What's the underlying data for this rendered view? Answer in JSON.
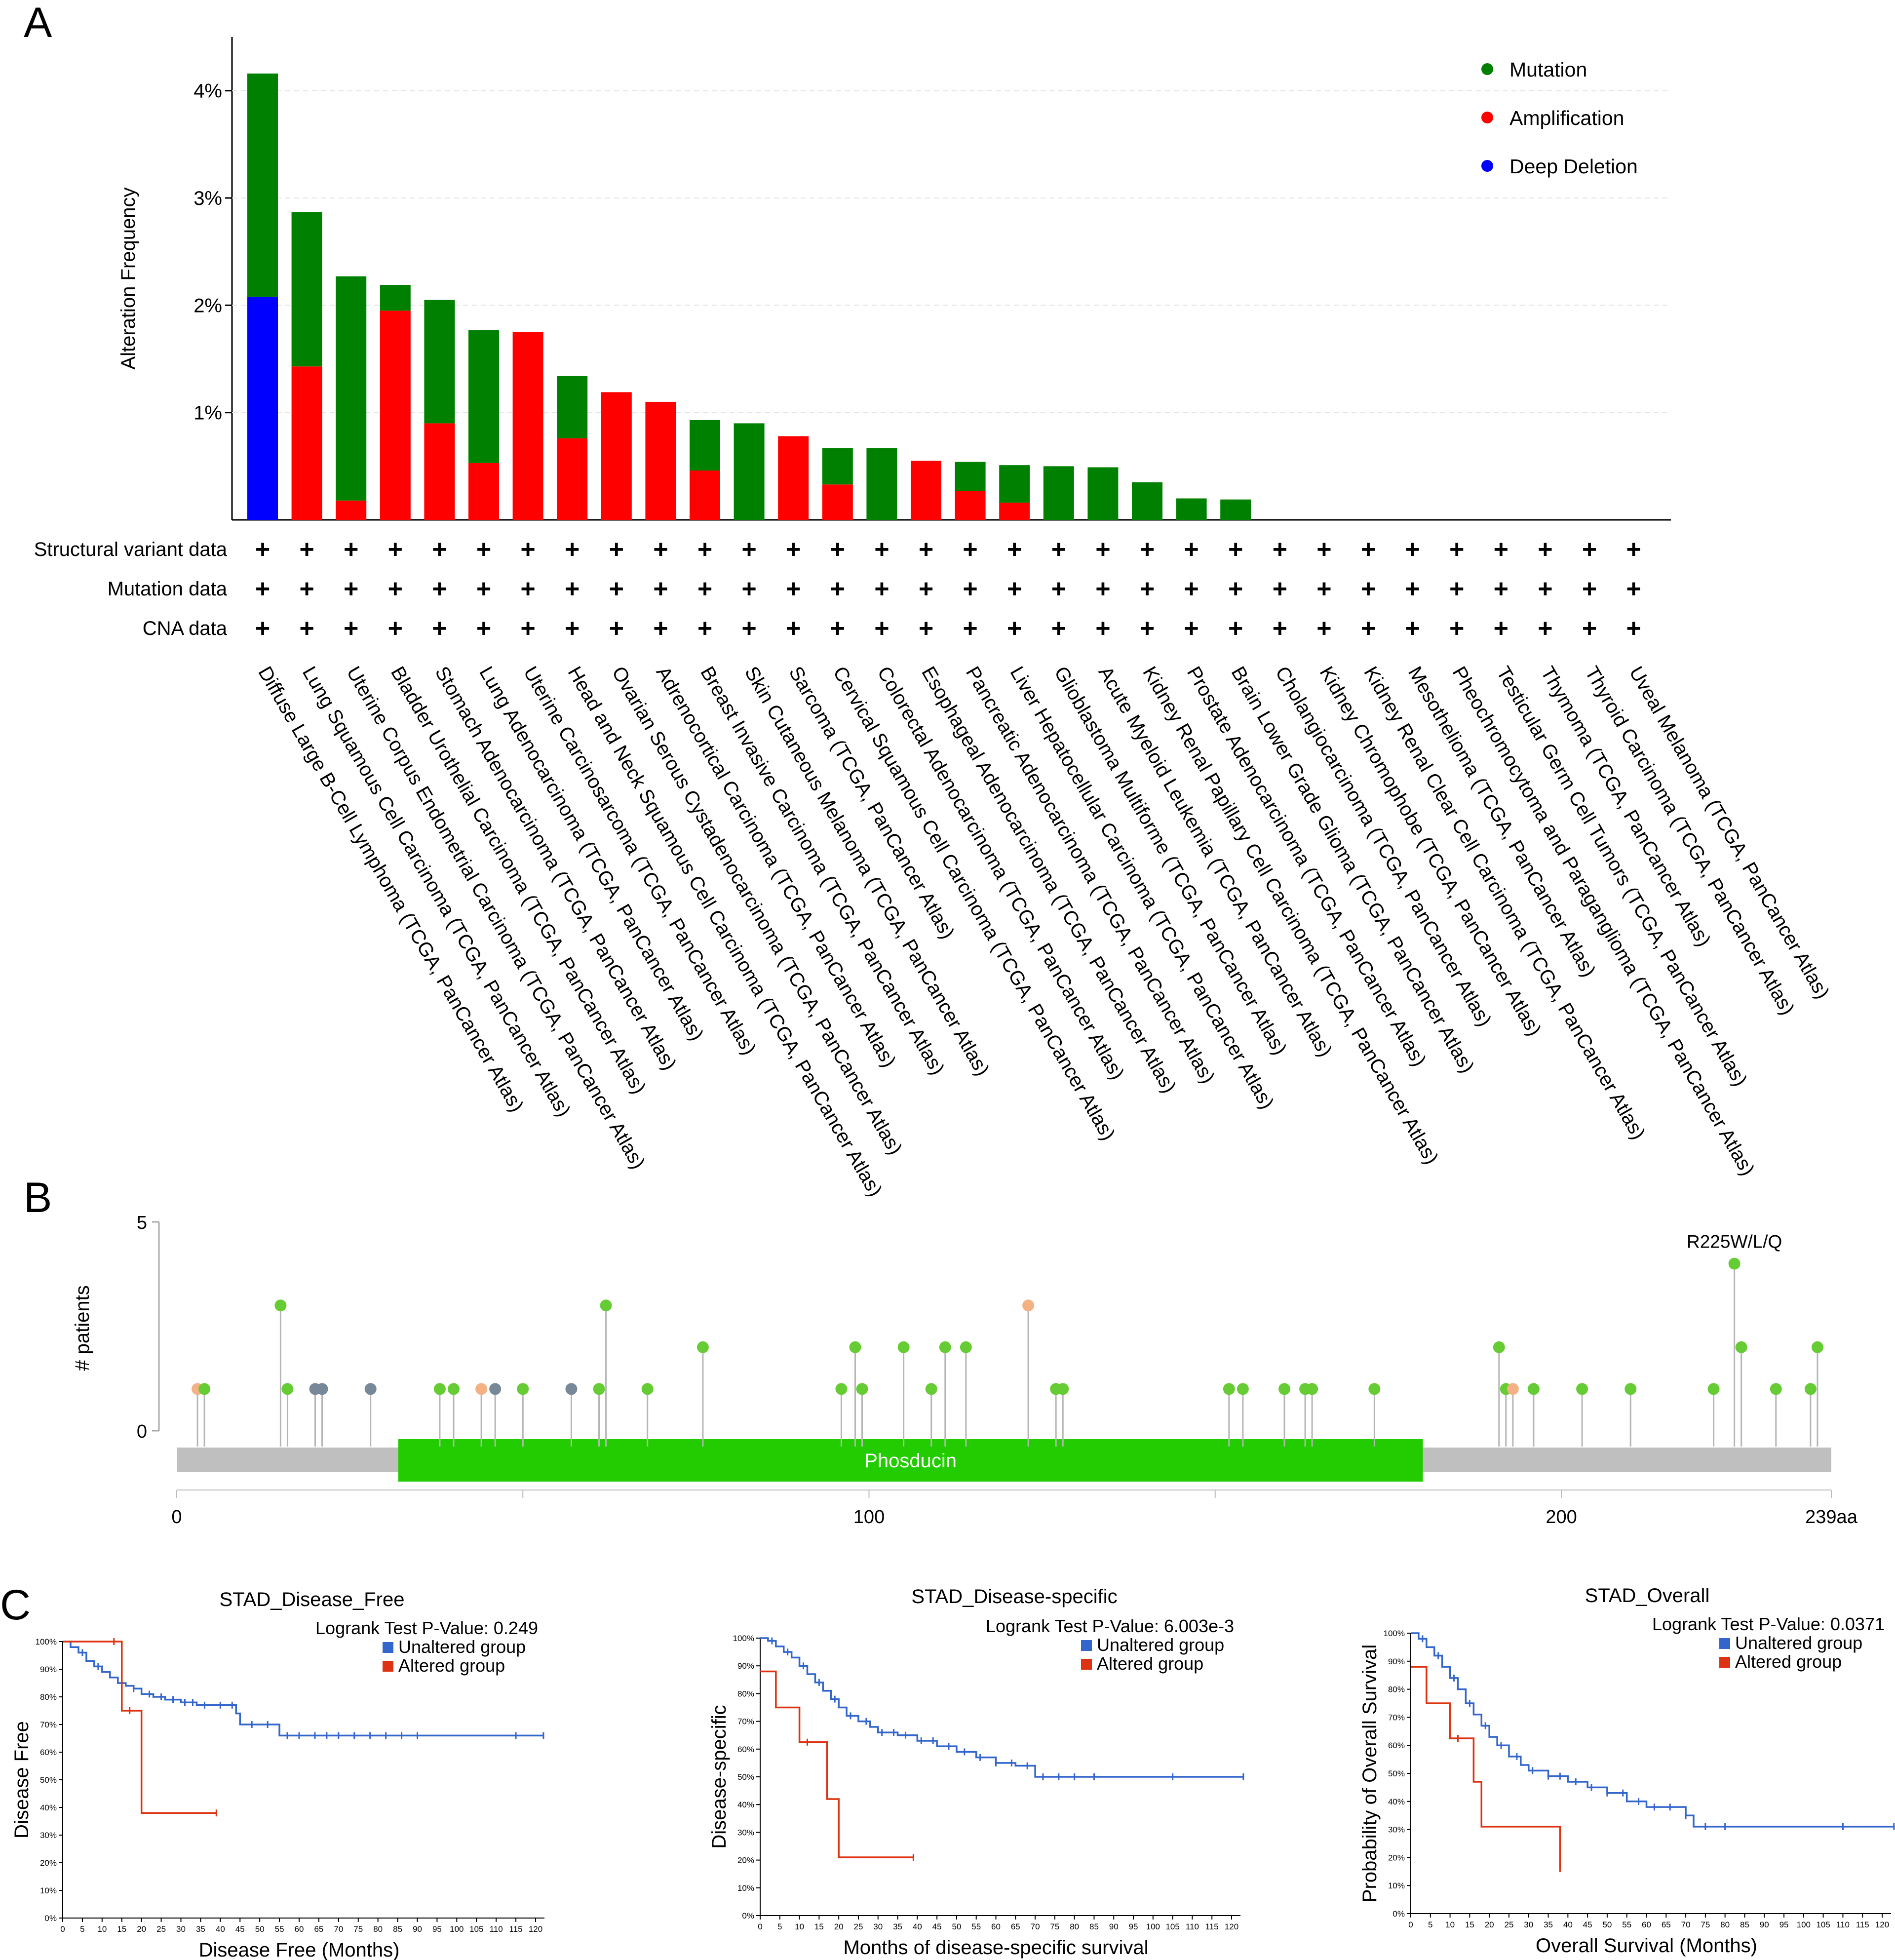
{
  "panels": {
    "a": "A",
    "b": "B",
    "c": "C"
  },
  "colors": {
    "mutation": "#008000",
    "amplification": "#ff0000",
    "deep_deletion": "#0000ff",
    "missense": "#66cc33",
    "truncating": "#778899",
    "inframe": "#f4b183",
    "domain": "#22cc00",
    "backbone": "#bfbfbf",
    "unaltered": "#3366cc",
    "altered": "#dd3311"
  },
  "chart_data": [
    {
      "id": "alteration_frequency",
      "type": "bar",
      "ylabel": "Alteration Frequency",
      "ylim": [
        0,
        4.5
      ],
      "yticks": [
        1,
        2,
        3,
        4
      ],
      "ytick_labels": [
        "1%",
        "2%",
        "3%",
        "4%"
      ],
      "legend": [
        "Mutation",
        "Amplification",
        "Deep Deletion"
      ],
      "legend_position": "top-right",
      "row_labels": [
        "Structural variant data",
        "Mutation data",
        "CNA data"
      ],
      "row_marker": "+",
      "categories": [
        "Diffuse Large B-Cell Lymphoma (TCGA, PanCancer Atlas)",
        "Lung Squamous Cell Carcinoma (TCGA, PanCancer Atlas)",
        "Uterine Corpus Endometrial Carcinoma (TCGA, PanCancer Atlas)",
        "Bladder Urothelial Carcinoma (TCGA, PanCancer Atlas)",
        "Stomach Adenocarcinoma (TCGA, PanCancer Atlas)",
        "Lung Adenocarcinoma (TCGA, PanCancer Atlas)",
        "Uterine Carcinosarcoma (TCGA, PanCancer Atlas)",
        "Head and Neck Squamous Cell Carcinoma (TCGA, PanCancer Atlas)",
        "Ovarian Serous Cystadenocarcinoma (TCGA, PanCancer Atlas)",
        "Adrenocortical Carcinoma (TCGA, PanCancer Atlas)",
        "Breast Invasive Carcinoma (TCGA, PanCancer Atlas)",
        "Skin Cutaneous Melanoma (TCGA, PanCancer Atlas)",
        "Sarcoma (TCGA, PanCancer Atlas)",
        "Cervical Squamous Cell Carcinoma (TCGA, PanCancer Atlas)",
        "Colorectal Adenocarcinoma (TCGA, PanCancer Atlas)",
        "Esophageal Adenocarcinoma (TCGA, PanCancer Atlas)",
        "Pancreatic Adenocarcinoma (TCGA, PanCancer Atlas)",
        "Liver Hepatocellular Carcinoma (TCGA, PanCancer Atlas)",
        "Glioblastoma Multiforme (TCGA, PanCancer Atlas)",
        "Acute Myeloid Leukemia (TCGA, PanCancer Atlas)",
        "Kidney Renal Papillary Cell Carcinoma (TCGA, PanCancer Atlas)",
        "Prostate Adenocarcinoma (TCGA, PanCancer Atlas)",
        "Brain Lower Grade Glioma (TCGA, PanCancer Atlas)",
        "Cholangiocarcinoma (TCGA, PanCancer Atlas)",
        "Kidney Chromophobe (TCGA, PanCancer Atlas)",
        "Kidney Renal Clear Cell Carcinoma (TCGA, PanCancer Atlas)",
        "Mesothelioma (TCGA, PanCancer Atlas)",
        "Pheochromocytoma and Paraganglioma (TCGA, PanCancer Atlas)",
        "Testicular Germ Cell Tumors (TCGA, PanCancer Atlas)",
        "Thymoma (TCGA, PanCancer Atlas)",
        "Thyroid Carcinoma (TCGA, PanCancer Atlas)",
        "Uveal Melanoma (TCGA, PanCancer Atlas)"
      ],
      "series": [
        {
          "name": "Deep Deletion",
          "values": [
            2.08,
            0,
            0,
            0,
            0,
            0,
            0,
            0,
            0,
            0,
            0,
            0,
            0,
            0,
            0,
            0,
            0,
            0,
            0,
            0,
            0,
            0,
            0,
            0,
            0,
            0,
            0,
            0,
            0,
            0,
            0,
            0
          ]
        },
        {
          "name": "Amplification",
          "values": [
            0,
            1.43,
            0.18,
            1.95,
            0.9,
            0.53,
            1.75,
            0.76,
            1.19,
            1.1,
            0.46,
            0,
            0.78,
            0.33,
            0,
            0.55,
            0.27,
            0.16,
            0,
            0,
            0,
            0,
            0,
            0,
            0,
            0,
            0,
            0,
            0,
            0,
            0,
            0
          ]
        },
        {
          "name": "Mutation",
          "values": [
            2.08,
            1.44,
            2.09,
            0.24,
            1.15,
            1.24,
            0,
            0.58,
            0,
            0,
            0.47,
            0.9,
            0,
            0.34,
            0.67,
            0,
            0.27,
            0.35,
            0.5,
            0.49,
            0.35,
            0.2,
            0.19,
            0,
            0,
            0,
            0,
            0,
            0,
            0,
            0,
            0
          ]
        }
      ]
    },
    {
      "id": "lollipop",
      "type": "scatter",
      "ylabel": "# patients",
      "ylim": [
        0,
        5
      ],
      "yticks": [
        0,
        5
      ],
      "xlim": [
        0,
        239
      ],
      "xticks": [
        0,
        100,
        200
      ],
      "xtick_labels": [
        "0",
        "100",
        "200"
      ],
      "protein_length_label": "239aa",
      "domain": {
        "name": "Phosducin",
        "start": 32,
        "end": 180
      },
      "annotation": {
        "label": "R225W/L/Q",
        "x": 225,
        "y": 4
      },
      "points": [
        {
          "x": 3,
          "y": 1,
          "type": "inframe"
        },
        {
          "x": 4,
          "y": 1,
          "type": "missense"
        },
        {
          "x": 15,
          "y": 3,
          "type": "missense"
        },
        {
          "x": 16,
          "y": 1,
          "type": "missense"
        },
        {
          "x": 20,
          "y": 1,
          "type": "truncating"
        },
        {
          "x": 21,
          "y": 1,
          "type": "truncating"
        },
        {
          "x": 28,
          "y": 1,
          "type": "truncating"
        },
        {
          "x": 38,
          "y": 1,
          "type": "missense"
        },
        {
          "x": 40,
          "y": 1,
          "type": "missense"
        },
        {
          "x": 44,
          "y": 1,
          "type": "inframe"
        },
        {
          "x": 46,
          "y": 1,
          "type": "truncating"
        },
        {
          "x": 50,
          "y": 1,
          "type": "missense"
        },
        {
          "x": 57,
          "y": 1,
          "type": "truncating"
        },
        {
          "x": 61,
          "y": 1,
          "type": "missense"
        },
        {
          "x": 62,
          "y": 3,
          "type": "missense"
        },
        {
          "x": 68,
          "y": 1,
          "type": "missense"
        },
        {
          "x": 76,
          "y": 2,
          "type": "missense"
        },
        {
          "x": 96,
          "y": 1,
          "type": "missense"
        },
        {
          "x": 98,
          "y": 2,
          "type": "missense"
        },
        {
          "x": 99,
          "y": 1,
          "type": "missense"
        },
        {
          "x": 105,
          "y": 2,
          "type": "missense"
        },
        {
          "x": 109,
          "y": 1,
          "type": "missense"
        },
        {
          "x": 111,
          "y": 2,
          "type": "missense"
        },
        {
          "x": 114,
          "y": 2,
          "type": "missense"
        },
        {
          "x": 123,
          "y": 3,
          "type": "inframe"
        },
        {
          "x": 127,
          "y": 1,
          "type": "missense"
        },
        {
          "x": 128,
          "y": 1,
          "type": "missense"
        },
        {
          "x": 152,
          "y": 1,
          "type": "missense"
        },
        {
          "x": 154,
          "y": 1,
          "type": "missense"
        },
        {
          "x": 160,
          "y": 1,
          "type": "missense"
        },
        {
          "x": 163,
          "y": 1,
          "type": "missense"
        },
        {
          "x": 164,
          "y": 1,
          "type": "missense"
        },
        {
          "x": 173,
          "y": 1,
          "type": "missense"
        },
        {
          "x": 191,
          "y": 2,
          "type": "missense"
        },
        {
          "x": 192,
          "y": 1,
          "type": "missense"
        },
        {
          "x": 193,
          "y": 1,
          "type": "inframe"
        },
        {
          "x": 196,
          "y": 1,
          "type": "missense"
        },
        {
          "x": 203,
          "y": 1,
          "type": "missense"
        },
        {
          "x": 210,
          "y": 1,
          "type": "missense"
        },
        {
          "x": 222,
          "y": 1,
          "type": "missense"
        },
        {
          "x": 225,
          "y": 4,
          "type": "missense"
        },
        {
          "x": 226,
          "y": 2,
          "type": "missense"
        },
        {
          "x": 231,
          "y": 1,
          "type": "missense"
        },
        {
          "x": 236,
          "y": 1,
          "type": "missense"
        },
        {
          "x": 237,
          "y": 2,
          "type": "missense"
        }
      ]
    },
    {
      "id": "km_disease_free",
      "type": "line",
      "title": "STAD_Disease_Free",
      "pvalue_label": "Logrank Test P-Value: 0.249",
      "xlabel": "Disease Free (Months)",
      "ylabel": "Disease Free",
      "xlim": [
        0,
        120
      ],
      "xticks": [
        0,
        5,
        10,
        15,
        20,
        25,
        30,
        35,
        40,
        45,
        50,
        55,
        60,
        65,
        70,
        75,
        80,
        85,
        90,
        95,
        100,
        105,
        110,
        115,
        120
      ],
      "ylim": [
        0,
        100
      ],
      "yticks": [
        0,
        10,
        20,
        30,
        40,
        50,
        60,
        70,
        80,
        90,
        100
      ],
      "ytick_labels": [
        "0%",
        "10%",
        "20%",
        "30%",
        "40%",
        "50%",
        "60%",
        "70%",
        "80%",
        "90%",
        "100%"
      ],
      "legend": [
        "Unaltered group",
        "Altered group"
      ],
      "series": [
        {
          "name": "Unaltered group",
          "x": [
            0,
            2,
            4,
            6,
            8,
            10,
            12,
            14,
            16,
            18,
            20,
            23,
            26,
            30,
            34,
            38,
            42,
            44,
            45,
            50,
            55,
            60,
            80,
            100,
            122
          ],
          "y": [
            100,
            98,
            96,
            93,
            91,
            89,
            87,
            85,
            84,
            83,
            81,
            80,
            79,
            78,
            77,
            77,
            77,
            74,
            70,
            70,
            66,
            66,
            66,
            66,
            66
          ],
          "censor_x": [
            5,
            9,
            15,
            18,
            22,
            25,
            28,
            31,
            33,
            36,
            40,
            43,
            48,
            52,
            57,
            60,
            64,
            67,
            70,
            74,
            78,
            82,
            86,
            90,
            115,
            122
          ]
        },
        {
          "name": "Altered group",
          "x": [
            0,
            14,
            15,
            18,
            20,
            39
          ],
          "y": [
            100,
            100,
            75,
            75,
            38,
            38
          ],
          "censor_x": [
            13,
            17,
            39
          ]
        }
      ]
    },
    {
      "id": "km_disease_specific",
      "type": "line",
      "title": "STAD_Disease-specific",
      "pvalue_label": "Logrank Test P-Value: 6.003e-3",
      "xlabel": "Months of disease-specific survival",
      "ylabel": "Disease-specific",
      "xlim": [
        0,
        120
      ],
      "xticks": [
        0,
        5,
        10,
        15,
        20,
        25,
        30,
        35,
        40,
        45,
        50,
        55,
        60,
        65,
        70,
        75,
        80,
        85,
        90,
        95,
        100,
        105,
        110,
        115,
        120
      ],
      "ylim": [
        0,
        100
      ],
      "yticks": [
        0,
        10,
        20,
        30,
        40,
        50,
        60,
        70,
        80,
        90,
        100
      ],
      "ytick_labels": [
        "0%",
        "10%",
        "20%",
        "30%",
        "40%",
        "50%",
        "60%",
        "70%",
        "80%",
        "90%",
        "100%"
      ],
      "legend": [
        "Unaltered group",
        "Altered group"
      ],
      "series": [
        {
          "name": "Unaltered group",
          "x": [
            0,
            2,
            4,
            6,
            8,
            10,
            12,
            14,
            16,
            18,
            20,
            22,
            25,
            28,
            30,
            35,
            40,
            45,
            50,
            55,
            60,
            65,
            70,
            80,
            100,
            123
          ],
          "y": [
            100,
            99,
            97,
            95,
            93,
            90,
            87,
            84,
            81,
            78,
            75,
            72,
            70,
            68,
            66,
            65,
            63,
            61,
            59,
            57,
            55,
            54,
            50,
            50,
            50,
            50
          ],
          "censor_x": [
            3,
            7,
            11,
            15,
            19,
            23,
            27,
            31,
            34,
            37,
            41,
            44,
            48,
            52,
            56,
            60,
            64,
            68,
            72,
            76,
            80,
            85,
            105,
            123
          ]
        },
        {
          "name": "Altered group",
          "x": [
            0,
            4,
            10,
            15,
            17,
            20,
            39
          ],
          "y": [
            88,
            75,
            62.5,
            62.5,
            42,
            21,
            21
          ],
          "censor_x": [
            12,
            39
          ]
        }
      ]
    },
    {
      "id": "km_overall",
      "type": "line",
      "title": "STAD_Overall",
      "pvalue_label": "Logrank Test P-Value: 0.0371",
      "xlabel": "Overall Survival (Months)",
      "ylabel": "Probability of Overall Survival",
      "xlim": [
        0,
        120
      ],
      "xticks": [
        0,
        5,
        10,
        15,
        20,
        25,
        30,
        35,
        40,
        45,
        50,
        55,
        60,
        65,
        70,
        75,
        80,
        85,
        90,
        95,
        100,
        105,
        110,
        115,
        120
      ],
      "ylim": [
        0,
        100
      ],
      "yticks": [
        0,
        10,
        20,
        30,
        40,
        50,
        60,
        70,
        80,
        90,
        100
      ],
      "ytick_labels": [
        "0%",
        "10%",
        "20%",
        "30%",
        "40%",
        "50%",
        "60%",
        "70%",
        "80%",
        "90%",
        "100%"
      ],
      "legend": [
        "Unaltered group",
        "Altered group"
      ],
      "series": [
        {
          "name": "Unaltered group",
          "x": [
            0,
            2,
            4,
            6,
            8,
            10,
            12,
            14,
            16,
            18,
            20,
            22,
            25,
            28,
            30,
            35,
            40,
            45,
            50,
            55,
            60,
            65,
            70,
            72,
            80,
            100,
            123
          ],
          "y": [
            100,
            98,
            95,
            92,
            88,
            84,
            80,
            75,
            71,
            67,
            63,
            60,
            56,
            53,
            51,
            49,
            47,
            45,
            43,
            40,
            38,
            38,
            35,
            31,
            31,
            31,
            31
          ],
          "censor_x": [
            3,
            7,
            11,
            15,
            19,
            23,
            27,
            31,
            35,
            38,
            42,
            46,
            50,
            54,
            58,
            62,
            66,
            70,
            75,
            80,
            110,
            123
          ]
        },
        {
          "name": "Altered group",
          "x": [
            0,
            4,
            10,
            15,
            16,
            18,
            38
          ],
          "y": [
            88,
            75,
            62.5,
            62.5,
            47,
            31,
            16
          ],
          "censor_x": [
            12,
            38
          ]
        }
      ]
    }
  ]
}
